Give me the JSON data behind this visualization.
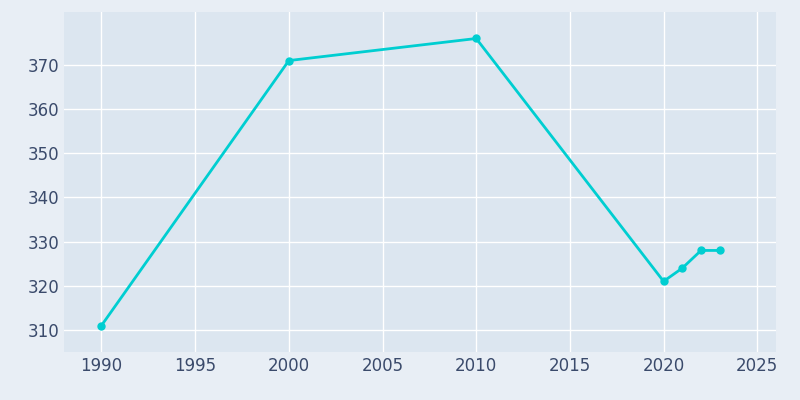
{
  "years": [
    1990,
    2000,
    2010,
    2020,
    2021,
    2022,
    2023
  ],
  "population": [
    311,
    371,
    376,
    321,
    324,
    328,
    328
  ],
  "line_color": "#00CED1",
  "marker_color": "#00CED1",
  "background_color": "#e8eef5",
  "plot_bg_color": "#dce6f0",
  "xlim": [
    1988,
    2026
  ],
  "ylim": [
    305,
    382
  ],
  "xticks": [
    1990,
    1995,
    2000,
    2005,
    2010,
    2015,
    2020,
    2025
  ],
  "yticks": [
    310,
    320,
    330,
    340,
    350,
    360,
    370
  ],
  "grid_color": "#ffffff",
  "tick_color": "#3a4a6b",
  "marker_size": 5,
  "line_width": 2,
  "tick_fontsize": 12
}
